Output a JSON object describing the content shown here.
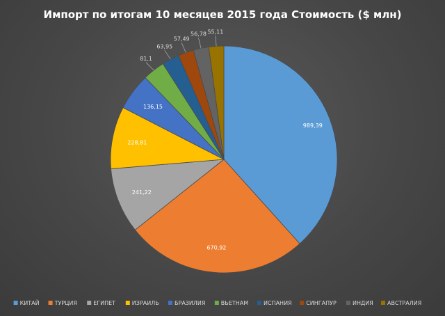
{
  "chart_data": {
    "type": "pie",
    "title": "Импорт по итогам 10 месяцев 2015 года Стоимость ($ млн)",
    "categories": [
      "КИТАЙ",
      "ТУРЦИЯ",
      "ЕГИПЕТ",
      "ИЗРАИЛЬ",
      "БРАЗИЛИЯ",
      "ВЬЕТНАМ",
      "ИСПАНИЯ",
      "СИНГАПУР",
      "ИНДИЯ",
      "АВСТРАЛИЯ"
    ],
    "values": [
      989.39,
      670.92,
      241.22,
      228.81,
      136.15,
      81.1,
      63.95,
      57.49,
      56.78,
      55.11
    ],
    "value_labels": [
      "989,39",
      "670,92",
      "241,22",
      "228,81",
      "136,15",
      "81,1",
      "63,95",
      "57,49",
      "56,78",
      "55,11"
    ],
    "colors": [
      "#5b9bd5",
      "#ed7d31",
      "#a5a5a5",
      "#ffc000",
      "#4472c4",
      "#70ad47",
      "#255e91",
      "#9e480e",
      "#636363",
      "#997300"
    ],
    "legend_position": "bottom"
  }
}
